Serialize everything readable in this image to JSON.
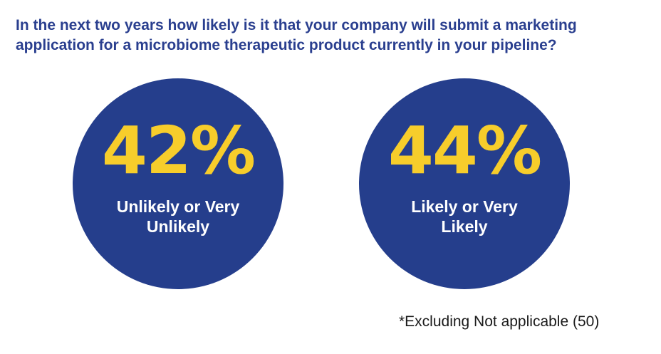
{
  "chart_data": {
    "type": "stat-circles",
    "title": {
      "line1": "In the next two years how likely is it that your company will submit a marketing",
      "line2": "application for a microbiome therapeutic product currently in your pipeline?"
    },
    "items": [
      {
        "value": 42,
        "value_text": "42%",
        "label_line1": "Unlikely or Very",
        "label_line2": "Unlikely"
      },
      {
        "value": 44,
        "value_text": "44%",
        "label_line1": "Likely or Very",
        "label_line2": "Likely"
      }
    ],
    "footnote": "*Excluding Not applicable (50)",
    "colors": {
      "circle": "#253e8c",
      "value": "#f7cd2b",
      "title": "#2a3f8f"
    }
  }
}
